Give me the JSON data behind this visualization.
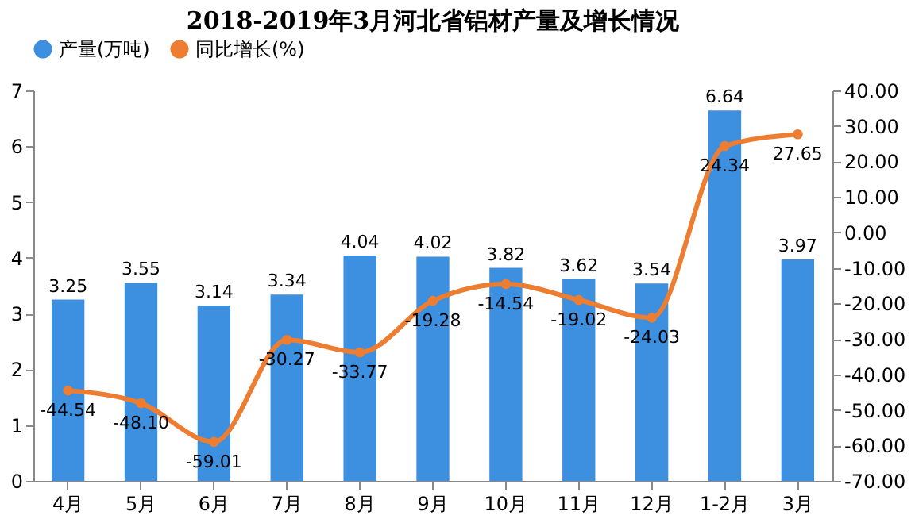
{
  "chart_data": {
    "type": "bar",
    "title": "2018-2019年3月河北省铝材产量及增长情况",
    "categories": [
      "4月",
      "5月",
      "6月",
      "7月",
      "8月",
      "9月",
      "10月",
      "11月",
      "12月",
      "1-2月",
      "3月"
    ],
    "series": [
      {
        "name": "产量(万吨)",
        "color": "#3d8fe0",
        "values": [
          3.25,
          3.55,
          3.14,
          3.34,
          4.04,
          4.02,
          3.82,
          3.62,
          3.54,
          6.64,
          3.97
        ],
        "value_labels": [
          "3.25",
          "3.55",
          "3.14",
          "3.34",
          "4.04",
          "4.02",
          "3.82",
          "3.62",
          "3.54",
          "6.64",
          "3.97"
        ]
      },
      {
        "name": "同比增长(%)",
        "type": "line",
        "axis": "y2",
        "color": "#ed7d31",
        "values": [
          -44.54,
          -48.1,
          -59.01,
          -30.27,
          -33.77,
          -19.28,
          -14.54,
          -19.02,
          -24.03,
          24.34,
          27.65
        ],
        "value_labels": [
          "-44.54",
          "-48.10",
          "-59.01",
          "-30.27",
          "-33.77",
          "-19.28",
          "-14.54",
          "-19.02",
          "-24.03",
          "24.34",
          "27.65"
        ]
      }
    ],
    "ylim": [
      0,
      7
    ],
    "yticks": [
      0,
      1,
      2,
      3,
      4,
      5,
      6,
      7
    ],
    "y2lim": [
      -70,
      40
    ],
    "y2ticks": [
      {
        "value": 40,
        "label": "40.00"
      },
      {
        "value": 30,
        "label": "30.00"
      },
      {
        "value": 20,
        "label": "20.00"
      },
      {
        "value": 10,
        "label": "10.00"
      },
      {
        "value": 0,
        "label": "0.00"
      },
      {
        "value": -10,
        "label": "-10.00"
      },
      {
        "value": -20,
        "label": "-20.00"
      },
      {
        "value": -30,
        "label": "-30.00"
      },
      {
        "value": -40,
        "label": "-40.00"
      },
      {
        "value": -50,
        "label": "-50.00"
      },
      {
        "value": -60,
        "label": "-60.00"
      },
      {
        "value": -70,
        "label": "-70.00"
      }
    ],
    "legend": "top",
    "marker": "circle",
    "line_style": "solid",
    "grid": false
  }
}
